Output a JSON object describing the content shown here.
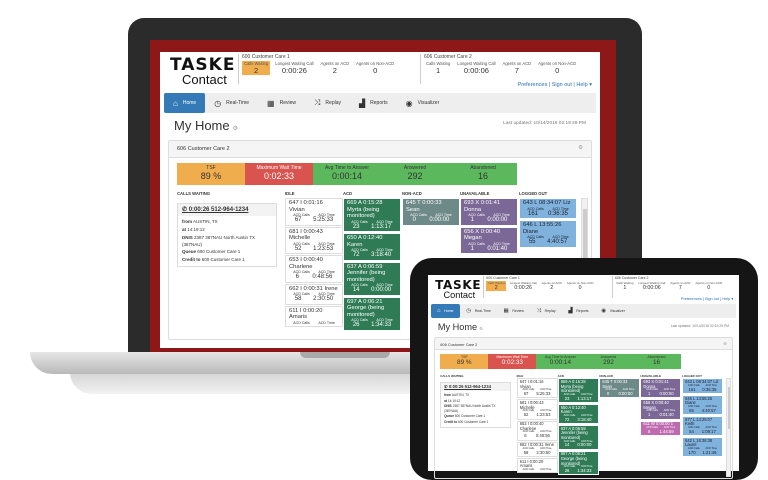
{
  "logo": {
    "line1": "TASKE",
    "line2": "Contact"
  },
  "queues": [
    {
      "name": "600 Customer Care 1",
      "stats": [
        {
          "label": "Calls Waiting",
          "value": "2",
          "highlight": true
        },
        {
          "label": "Longest Waiting Call",
          "value": "0:00:26"
        },
        {
          "label": "Agents on ACD",
          "value": "2"
        },
        {
          "label": "Agents on Non-ACD",
          "value": "0"
        }
      ]
    },
    {
      "name": "606 Customer Care 2",
      "stats": [
        {
          "label": "Calls Waiting",
          "value": "1"
        },
        {
          "label": "Longest Waiting Call",
          "value": "0:00:06"
        },
        {
          "label": "Agents on ACD",
          "value": "7"
        },
        {
          "label": "Agents on Non-ACD",
          "value": "0"
        }
      ]
    }
  ],
  "links": {
    "preferences": "Preferences",
    "sign_out": "Sign out",
    "help": "Help ▾"
  },
  "nav": [
    {
      "label": "Home",
      "icon": "home-icon",
      "glyph": "⌂"
    },
    {
      "label": "Real-Time",
      "icon": "clock-icon",
      "glyph": "◷"
    },
    {
      "label": "Review",
      "icon": "calendar-icon",
      "glyph": "▦"
    },
    {
      "label": "Replay",
      "icon": "shuffle-icon",
      "glyph": "⤨"
    },
    {
      "label": "Reports",
      "icon": "bar-chart-icon",
      "glyph": "▟"
    },
    {
      "label": "Visualizer",
      "icon": "eye-icon",
      "glyph": "◉"
    }
  ],
  "page": {
    "title": "My Home",
    "last_updated": "Last updated: 10/14/2016 02:19:29 PM"
  },
  "panel": {
    "title": "606 Customer Care 2"
  },
  "stats": [
    {
      "label": "TSF",
      "value": "89 %",
      "color": "#f0ad4e"
    },
    {
      "label": "Maximum Wait Time",
      "value": "0:02:33",
      "color": "#d9534f"
    },
    {
      "label": "Avg Time to Answer",
      "value": "0:00:14",
      "color": "#5cb85c"
    },
    {
      "label": "Answered",
      "value": "292",
      "color": "#5cb85c"
    },
    {
      "label": "Abandoned",
      "value": "16",
      "color": "#5cb85c"
    }
  ],
  "columns": [
    "CALLS WAITING",
    "IDLE",
    "ACD",
    "NON-ACD",
    "UNAVAILABLE",
    "LOGGED OUT"
  ],
  "call": {
    "header": "0:00:26  512-964-1234",
    "from_label": "from",
    "from": "AUSTIN, TX",
    "at_label": "at",
    "at": "14:19:12",
    "dnis_label": "DNIS",
    "dnis": "2387 387NAU North Austin TX (387NAU)",
    "queue_label": "Queue",
    "queue": "600 Customer Care 1",
    "credit_label": "Credit to",
    "credit": "600 Customer Care 1"
  },
  "sub_labels": {
    "calls": "ACD Calls",
    "time": "ACD Time"
  },
  "agents": {
    "idle": [
      {
        "name": "647 I 0:01:16 Vivian",
        "calls": "67",
        "time": "5:25:33"
      },
      {
        "name": "681 I 0:00:43 Michelle",
        "calls": "52",
        "time": "1:23:53"
      },
      {
        "name": "653 I 0:00:40 Charlene",
        "calls": "6",
        "time": "0:48:56"
      },
      {
        "name": "662 I 0:00:31 Irene",
        "calls": "58",
        "time": "2:30:50"
      },
      {
        "name": "611 I 0:00:20 Amaris",
        "calls": "",
        "time": ""
      }
    ],
    "acd": [
      {
        "name": "669 A 0:15:28 Myrta (being monitored)",
        "calls": "23",
        "time": "1:13:17"
      },
      {
        "name": "650 A 0:12:40 Karen",
        "calls": "72",
        "time": "3:18:40"
      },
      {
        "name": "637 A 0:06:59 Jennifer (being monitored)",
        "calls": "14",
        "time": "0:00:00"
      },
      {
        "name": "697 A 0:06:21 George (being monitored)",
        "calls": "26",
        "time": "1:34:33"
      }
    ],
    "nonacd": [
      {
        "name": "645 T 0:00:33 Sean",
        "calls": "0",
        "time": "0:00:00"
      }
    ],
    "unav": [
      {
        "name": "693 X 0:01:41 Donna",
        "calls": "1",
        "time": "0:00:00"
      },
      {
        "name": "656 X 0:00:40 Megan",
        "calls": "1",
        "time": "0:01:40"
      },
      {
        "name": "611 W 0:00:00 1",
        "calls": "6",
        "time": "1:44:59",
        "pink": true
      }
    ],
    "lo": [
      {
        "name": "643 L 08:34:07 Liz",
        "calls": "161",
        "time": "0:36:35"
      },
      {
        "name": "646 L 13:55:26 Diane",
        "calls": "55",
        "time": "4:40:57"
      },
      {
        "name": "677 L 14:25:07 Keith",
        "calls": "54",
        "time": "1:09:17"
      },
      {
        "name": "642 L 16:36:38 Laurel",
        "calls": "170",
        "time": "1:21:46"
      }
    ]
  }
}
